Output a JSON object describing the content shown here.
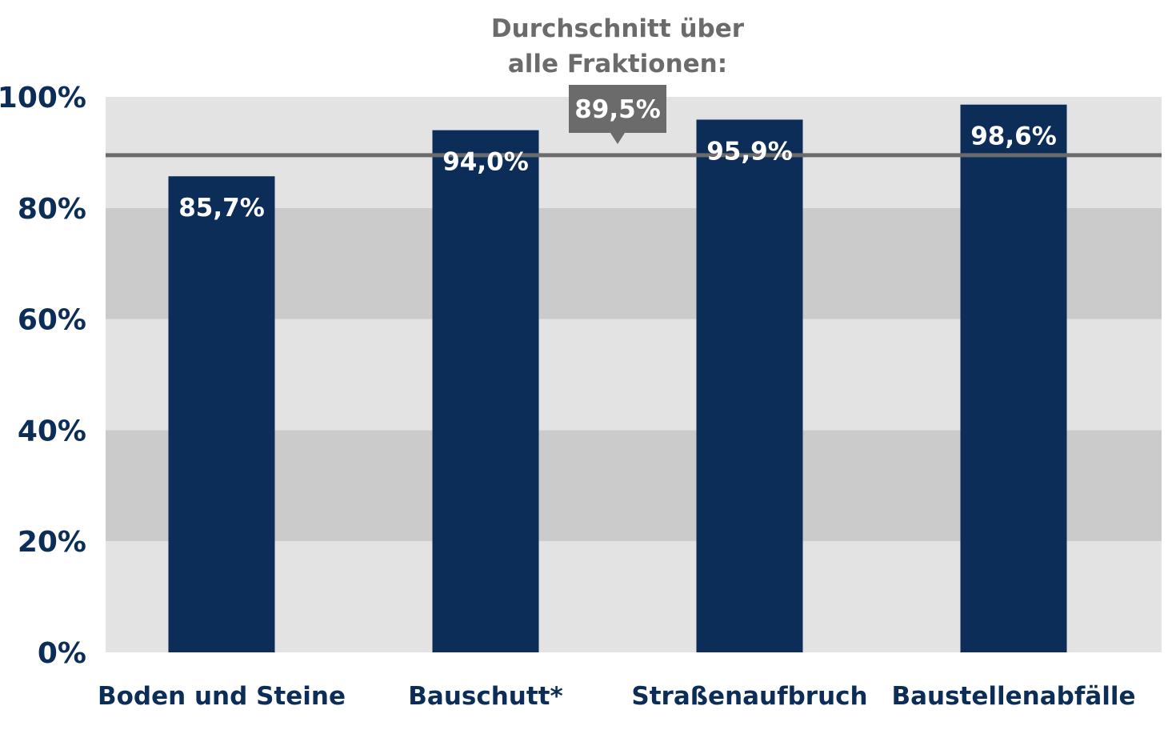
{
  "chart_data": {
    "type": "bar",
    "categories": [
      "Boden und Steine",
      "Bauschutt*",
      "Straßenaufbruch",
      "Baustellenabfälle"
    ],
    "values": [
      85.7,
      94.0,
      95.9,
      98.6
    ],
    "value_labels": [
      "85,7%",
      "94,0%",
      "95,9%",
      "98,6%"
    ],
    "ylim": [
      0,
      100
    ],
    "yticks": [
      0,
      20,
      40,
      60,
      80,
      100
    ],
    "ytick_labels": [
      "0%",
      "20%",
      "40%",
      "60%",
      "80%",
      "100%"
    ],
    "average": {
      "title_line1": "Durchschnitt über",
      "title_line2": "alle Fraktionen:",
      "value": 89.5,
      "label": "89,5%"
    },
    "grid": "alternating horizontal bands",
    "colors": {
      "bar": "#0c2d57",
      "band_light": "#e3e3e3",
      "band_dark": "#cbcbcb",
      "average_line": "#6b6b6b",
      "axis_text": "#0c2d57"
    }
  }
}
